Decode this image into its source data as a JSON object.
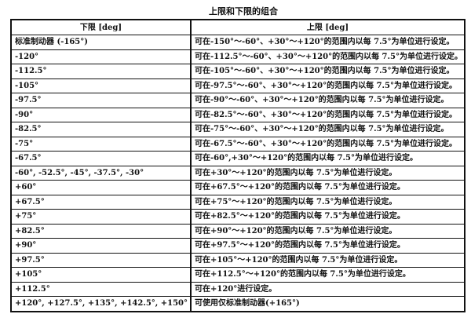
{
  "title": "上限和下限的组合",
  "table": {
    "headers": [
      "下限 [deg]",
      "上限 [deg]"
    ],
    "rows": [
      [
        "标准制动器 (-165°)",
        "可在-150°～-60°、+30°～+120°的范围内以每 7.5°为单位进行设定。"
      ],
      [
        "-120°",
        "可在-112.5°～-60°、+30°～+120°的范围内以每 7.5°为单位进行设定。"
      ],
      [
        "-112.5°",
        "可在-105°～-60°、+30°～+120°的范围内以每 7.5°为单位进行设定。"
      ],
      [
        "-105°",
        "可在-97.5°～-60°、+30°～+120°的范围内以每 7.5°为单位进行设定。"
      ],
      [
        "-97.5°",
        "可在-90°～-60°、+30°～+120°的范围内以每 7.5°为单位进行设定。"
      ],
      [
        "-90°",
        "可在-82.5°～-60°、+30°～+120°的范围内以每 7.5°为单位进行设定。"
      ],
      [
        "-82.5°",
        "可在-75°～-60°、+30°～+120°的范围内以每 7.5°为单位进行设定。"
      ],
      [
        "-75°",
        "可在-67.5°～-60°、+30°～+120°的范围内以每 7.5°为单位进行设定。"
      ],
      [
        "-67.5°",
        "可在-60°,+30°～+120°的范围内以每 7.5°为单位进行设定。"
      ],
      [
        "-60°, -52.5°, -45°, -37.5°, -30°",
        "可在+30°～+120°的范围内以每 7.5°为单位进行设定。"
      ],
      [
        "+60°",
        "可在+67.5°～+120°的范围内以每 7.5°为单位进行设定。"
      ],
      [
        "+67.5°",
        "可在+75°～+120°的范围内以每 7.5°为单位进行设定。"
      ],
      [
        "+75°",
        "可在+82.5°～+120°的范围内以每 7.5°为单位进行设定。"
      ],
      [
        "+82.5°",
        "可在+90°～+120°的范围内以每 7.5°为单位进行设定。"
      ],
      [
        "+90°",
        "可在+97.5°～+120°的范围内以每 7.5°为单位进行设定。"
      ],
      [
        "+97.5°",
        "可在+105°～+120°的范围内以每 7.5°为单位进行设定。"
      ],
      [
        "+105°",
        "可在+112.5°～+120°的范围内以每 7.5°为单位进行设定。"
      ],
      [
        "+112.5°",
        "可在+120°进行设定。"
      ],
      [
        "+120°, +127.5°, +135°, +142.5°, +150°",
        "可使用仅标准制动器(+165°)"
      ]
    ]
  }
}
